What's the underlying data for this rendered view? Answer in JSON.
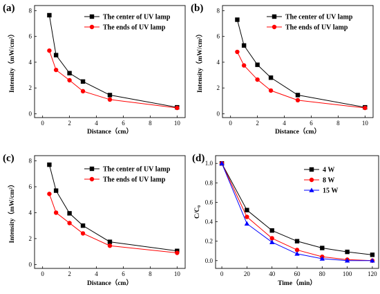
{
  "chart_data": [
    {
      "type": "line",
      "panel_label": "(a)",
      "xlabel": "Distance（cm）",
      "ylabel": "Intensity（mW/cm²）",
      "xlim": [
        -0.6,
        10.6
      ],
      "ylim": [
        -0.3,
        8.4
      ],
      "xticks": [
        "0",
        "2",
        "4",
        "6",
        "8",
        "10"
      ],
      "yticks": [
        "0",
        "2",
        "4",
        "6",
        "8"
      ],
      "legend_position": "top-right",
      "series": [
        {
          "name": "The center of UV lamp",
          "color": "#000000",
          "marker": "square",
          "x": [
            0.5,
            1,
            2,
            3,
            5,
            10
          ],
          "y": [
            7.65,
            4.55,
            3.15,
            2.5,
            1.45,
            0.5
          ]
        },
        {
          "name": "The ends of UV lamp",
          "color": "#ff0000",
          "marker": "circle",
          "x": [
            0.5,
            1,
            2,
            3,
            5,
            10
          ],
          "y": [
            4.9,
            3.4,
            2.6,
            1.75,
            1.1,
            0.45
          ]
        }
      ]
    },
    {
      "type": "line",
      "panel_label": "(b)",
      "xlabel": "Distance（cm）",
      "ylabel": "Intensity（mW/cm²）",
      "xlim": [
        -0.6,
        10.6
      ],
      "ylim": [
        -0.3,
        8.4
      ],
      "xticks": [
        "0",
        "2",
        "4",
        "6",
        "8",
        "10"
      ],
      "yticks": [
        "0",
        "2",
        "4",
        "6",
        "8"
      ],
      "legend_position": "top-right",
      "series": [
        {
          "name": "The center of UV lamp",
          "color": "#000000",
          "marker": "square",
          "x": [
            0.5,
            1,
            2,
            3,
            5,
            10
          ],
          "y": [
            7.3,
            5.3,
            3.8,
            2.8,
            1.45,
            0.5
          ]
        },
        {
          "name": "The ends of UV lamp",
          "color": "#ff0000",
          "marker": "circle",
          "x": [
            0.5,
            1,
            2,
            3,
            5,
            10
          ],
          "y": [
            4.8,
            3.75,
            2.65,
            1.8,
            1.05,
            0.45
          ]
        }
      ]
    },
    {
      "type": "line",
      "panel_label": "(c)",
      "xlabel": "Distance（cm）",
      "ylabel": "Intensity（mW/cm²）",
      "xlim": [
        -0.6,
        10.6
      ],
      "ylim": [
        -0.3,
        8.4
      ],
      "xticks": [
        "0",
        "2",
        "4",
        "6",
        "8",
        "10"
      ],
      "yticks": [
        "0",
        "2",
        "4",
        "6",
        "8"
      ],
      "legend_position": "top-right",
      "series": [
        {
          "name": "The center of UV lamp",
          "color": "#000000",
          "marker": "square",
          "x": [
            0.5,
            1,
            2,
            3,
            5,
            10
          ],
          "y": [
            7.7,
            5.7,
            3.95,
            3.0,
            1.75,
            1.05
          ]
        },
        {
          "name": "The ends of UV lamp",
          "color": "#ff0000",
          "marker": "circle",
          "x": [
            0.5,
            1,
            2,
            3,
            5,
            10
          ],
          "y": [
            5.45,
            4.0,
            3.2,
            2.4,
            1.45,
            0.9
          ]
        }
      ]
    },
    {
      "type": "line",
      "panel_label": "(d)",
      "xlabel": "Time（min）",
      "ylabel": "C/C₀",
      "xlim": [
        -5,
        125
      ],
      "ylim": [
        -0.08,
        1.08
      ],
      "xticks": [
        "0",
        "20",
        "40",
        "60",
        "80",
        "100",
        "120"
      ],
      "yticks": [
        "0.0",
        "0.2",
        "0.4",
        "0.6",
        "0.8",
        "1.0"
      ],
      "legend_position": "top-right",
      "series": [
        {
          "name": "4 W",
          "color": "#000000",
          "marker": "square",
          "x": [
            0,
            20,
            40,
            60,
            80,
            100,
            120
          ],
          "y": [
            1.0,
            0.52,
            0.31,
            0.2,
            0.13,
            0.09,
            0.06
          ]
        },
        {
          "name": "8 W",
          "color": "#ff0000",
          "marker": "circle",
          "x": [
            0,
            20,
            40,
            60,
            80,
            100,
            120
          ],
          "y": [
            1.0,
            0.45,
            0.23,
            0.11,
            0.04,
            0.01,
            0.0
          ]
        },
        {
          "name": "15 W",
          "color": "#0000ff",
          "marker": "triangle",
          "x": [
            0,
            20,
            40,
            60,
            80,
            100,
            120
          ],
          "y": [
            1.0,
            0.38,
            0.19,
            0.07,
            0.02,
            0.0,
            0.0
          ]
        }
      ]
    }
  ]
}
